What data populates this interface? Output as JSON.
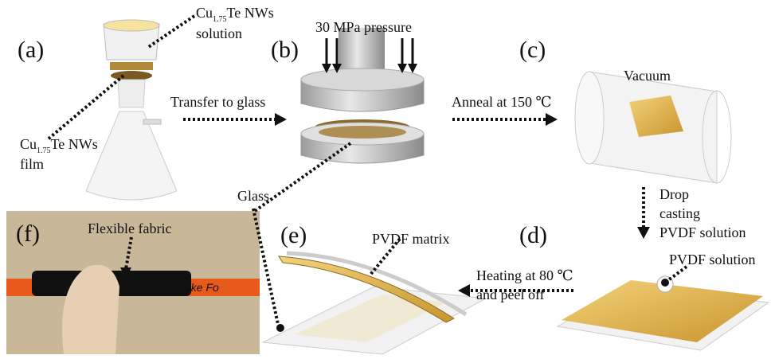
{
  "panels": [
    {
      "label": "(a)"
    },
    {
      "label": "(b)"
    },
    {
      "label": "(c)"
    },
    {
      "label": "(d)"
    },
    {
      "label": "(e)"
    },
    {
      "label": "(f)"
    }
  ],
  "annotations": {
    "solution": {
      "base": "Cu",
      "sub": "1.75",
      "rest": "Te NWs",
      "line2": "solution"
    },
    "film": {
      "base": "Cu",
      "sub": "1.75",
      "rest": "Te NWs",
      "line2": "film"
    },
    "pressure": "30 MPa pressure",
    "transfer": "Transfer to glass",
    "anneal": "Anneal  at 150 ℃",
    "vacuum": "Vacuum",
    "glass": "Glass",
    "drop_casting": [
      "Drop",
      "casting",
      "PVDF solution"
    ],
    "pvdf_solution": "PVDF solution",
    "pvdf_matrix": "PVDF matrix",
    "heating": [
      "Heating at 80 ℃",
      "and peel off"
    ],
    "flexible_fabric": "Flexible fabric",
    "photo_text": "ake Fo"
  }
}
